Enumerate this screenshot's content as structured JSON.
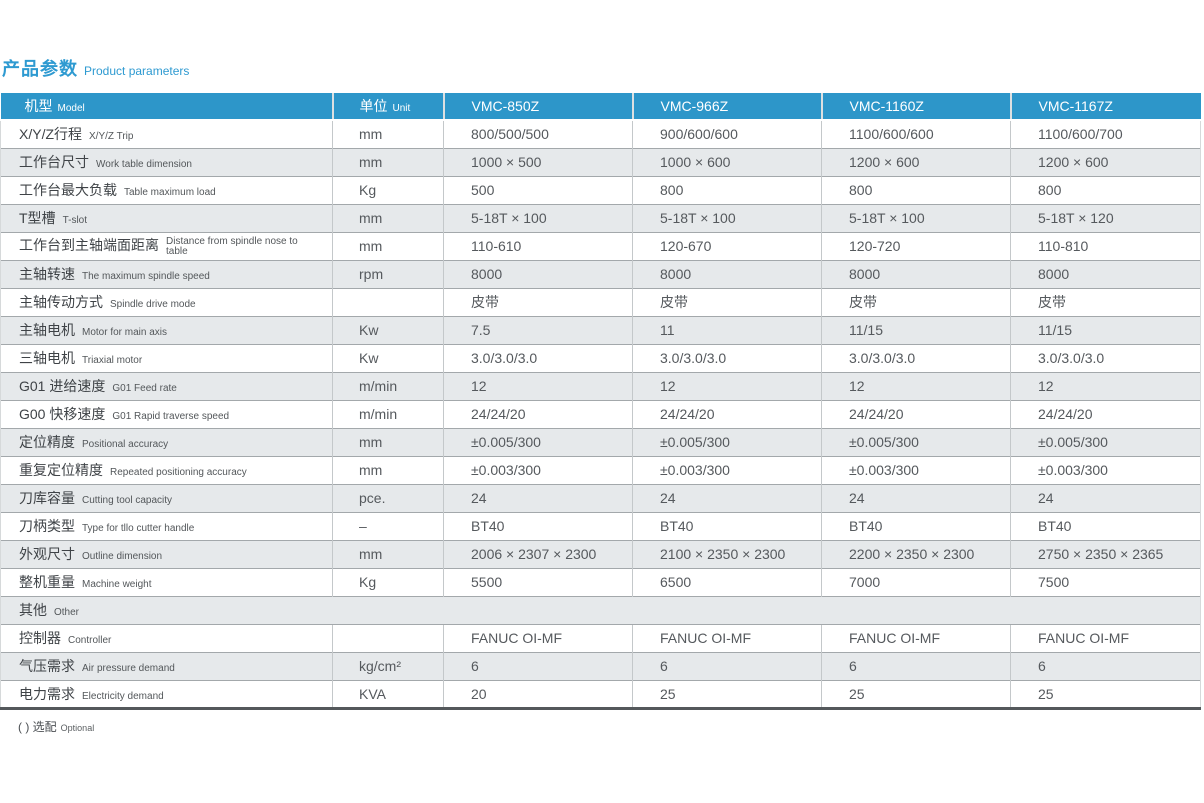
{
  "page": {
    "title_zh": "产品参数",
    "title_en": "Product parameters",
    "footer_zh": "( ) 选配",
    "footer_en": "Optional",
    "accent_color": "#2d96c9",
    "alt_row_color": "#e6e9eb"
  },
  "table": {
    "header": {
      "model_zh": "机型",
      "model_en": "Model",
      "unit_zh": "单位",
      "unit_en": "Unit",
      "models": [
        "VMC-850Z",
        "VMC-966Z",
        "VMC-1160Z",
        "VMC-1167Z"
      ]
    },
    "rows": [
      {
        "zh": "X/Y/Z行程",
        "en": "X/Y/Z Trip",
        "unit": "mm",
        "values": [
          "800/500/500",
          "900/600/600",
          "1100/600/600",
          "1100/600/700"
        ]
      },
      {
        "zh": "工作台尺寸",
        "en": "Work table dimension",
        "unit": "mm",
        "values": [
          "1000 × 500",
          "1000 × 600",
          "1200 × 600",
          "1200 × 600"
        ]
      },
      {
        "zh": "工作台最大负载",
        "en": "Table maximum load",
        "unit": "Kg",
        "values": [
          "500",
          "800",
          "800",
          "800"
        ]
      },
      {
        "zh": "T型槽",
        "en": "T-slot",
        "unit": "mm",
        "values": [
          "5-18T × 100",
          "5-18T × 100",
          "5-18T × 100",
          "5-18T × 120"
        ]
      },
      {
        "zh": "工作台到主轴端面距离",
        "en": "Distance from spindle nose to table",
        "en_wrap": true,
        "unit": "mm",
        "values": [
          "110-610",
          "120-670",
          "120-720",
          "110-810"
        ]
      },
      {
        "zh": "主轴转速",
        "en": "The maximum spindle speed",
        "unit": "rpm",
        "values": [
          "8000",
          "8000",
          "8000",
          "8000"
        ]
      },
      {
        "zh": "主轴传动方式",
        "en": "Spindle drive mode",
        "unit": "",
        "values": [
          "皮带",
          "皮带",
          "皮带",
          "皮带"
        ]
      },
      {
        "zh": "主轴电机",
        "en": "Motor for main axis",
        "unit": "Kw",
        "values": [
          "7.5",
          "11",
          "11/15",
          "11/15"
        ]
      },
      {
        "zh": "三轴电机",
        "en": "Triaxial motor",
        "unit": "Kw",
        "values": [
          "3.0/3.0/3.0",
          "3.0/3.0/3.0",
          "3.0/3.0/3.0",
          "3.0/3.0/3.0"
        ]
      },
      {
        "zh": "G01 进给速度",
        "en": "G01 Feed rate",
        "unit": "m/min",
        "values": [
          "12",
          "12",
          "12",
          "12"
        ]
      },
      {
        "zh": "G00 快移速度",
        "en": "G01 Rapid traverse speed",
        "unit": "m/min",
        "values": [
          "24/24/20",
          "24/24/20",
          "24/24/20",
          "24/24/20"
        ]
      },
      {
        "zh": "定位精度",
        "en": "Positional accuracy",
        "unit": "mm",
        "values": [
          "±0.005/300",
          "±0.005/300",
          "±0.005/300",
          "±0.005/300"
        ]
      },
      {
        "zh": "重复定位精度",
        "en": "Repeated positioning accuracy",
        "unit": "mm",
        "values": [
          "±0.003/300",
          "±0.003/300",
          "±0.003/300",
          "±0.003/300"
        ]
      },
      {
        "zh": "刀库容量",
        "en": "Cutting tool capacity",
        "unit": "pce.",
        "values": [
          "24",
          "24",
          "24",
          "24"
        ]
      },
      {
        "zh": "刀柄类型",
        "en": "Type for tllo cutter handle",
        "unit": "–",
        "values": [
          "BT40",
          "BT40",
          "BT40",
          "BT40"
        ]
      },
      {
        "zh": "外观尺寸",
        "en": "Outline dimension",
        "unit": "mm",
        "values": [
          "2006 × 2307 × 2300",
          "2100 × 2350 × 2300",
          "2200 × 2350 × 2300",
          "2750 × 2350 × 2365"
        ]
      },
      {
        "zh": "整机重量",
        "en": "Machine weight",
        "unit": "Kg",
        "values": [
          "5500",
          "6500",
          "7000",
          "7500"
        ]
      },
      {
        "type": "section",
        "zh": "其他",
        "en": "Other"
      },
      {
        "zh": "控制器",
        "en": "Controller",
        "unit": "",
        "values": [
          "FANUC OI-MF",
          "FANUC OI-MF",
          "FANUC OI-MF",
          "FANUC OI-MF"
        ]
      },
      {
        "zh": "气压需求",
        "en": "Air pressure demand",
        "unit": "kg/cm²",
        "values": [
          "6",
          "6",
          "6",
          "6"
        ]
      },
      {
        "zh": "电力需求",
        "en": "Electricity demand",
        "unit": "KVA",
        "values": [
          "20",
          "25",
          "25",
          "25"
        ]
      }
    ]
  }
}
